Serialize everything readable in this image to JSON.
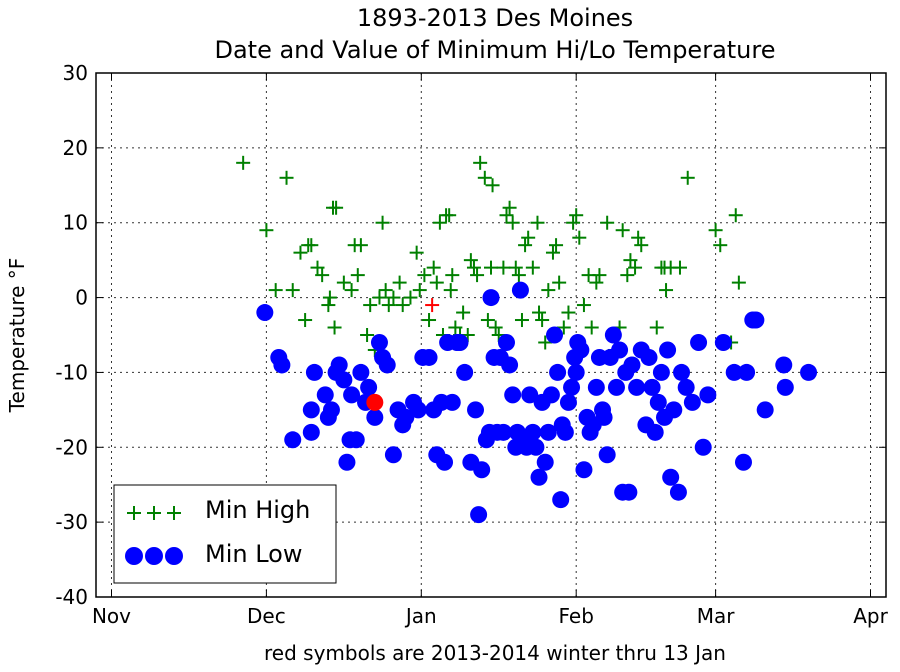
{
  "chart_data": {
    "type": "scatter",
    "title_line1": "1893-2013 Des Moines",
    "title_line2": "Date and Value of Minimum Hi/Lo Temperature",
    "xlabel": "red symbols are 2013-2014 winter thru 13 Jan",
    "ylabel": "Temperature °F",
    "ylim": [
      -40,
      30
    ],
    "yticks": [
      30,
      20,
      10,
      0,
      -10,
      -20,
      -30,
      -40
    ],
    "xlim": [
      -1,
      50
    ],
    "xticks": [
      {
        "label": "Nov",
        "value": 0
      },
      {
        "label": "Dec",
        "value": 10
      },
      {
        "label": "Jan",
        "value": 20
      },
      {
        "label": "Feb",
        "value": 30
      },
      {
        "label": "Mar",
        "value": 39
      },
      {
        "label": "Apr",
        "value": 49
      }
    ],
    "grid": true,
    "legend_position": "lower-left",
    "series": [
      {
        "name": "Min High",
        "color": "#008000",
        "marker": "plus",
        "points": [
          [
            8.5,
            18
          ],
          [
            10,
            9
          ],
          [
            10.6,
            1
          ],
          [
            11.3,
            16
          ],
          [
            11.7,
            1
          ],
          [
            12.2,
            6
          ],
          [
            12.5,
            -3
          ],
          [
            12.7,
            7
          ],
          [
            12.9,
            7
          ],
          [
            13.3,
            4
          ],
          [
            13.6,
            3
          ],
          [
            14.0,
            -1
          ],
          [
            14.1,
            0
          ],
          [
            14.3,
            12
          ],
          [
            14.5,
            12
          ],
          [
            14.4,
            -4
          ],
          [
            15.0,
            2
          ],
          [
            15.5,
            1
          ],
          [
            15.7,
            7
          ],
          [
            15.9,
            3
          ],
          [
            16.1,
            7
          ],
          [
            16.5,
            -5
          ],
          [
            16.7,
            -1
          ],
          [
            17.0,
            -7
          ],
          [
            17.3,
            0
          ],
          [
            17.5,
            10
          ],
          [
            17.7,
            1
          ],
          [
            17.9,
            -1
          ],
          [
            18.2,
            0
          ],
          [
            18.6,
            2
          ],
          [
            18.8,
            -1
          ],
          [
            19.3,
            0
          ],
          [
            19.7,
            6
          ],
          [
            19.9,
            1
          ],
          [
            20.2,
            3
          ],
          [
            20.5,
            -3
          ],
          [
            20.8,
            4
          ],
          [
            21.0,
            2
          ],
          [
            21.2,
            10
          ],
          [
            21.4,
            -5
          ],
          [
            21.6,
            11
          ],
          [
            21.8,
            11
          ],
          [
            21.9,
            1
          ],
          [
            22.0,
            3
          ],
          [
            22.2,
            -4
          ],
          [
            22.5,
            -5
          ],
          [
            22.7,
            -2
          ],
          [
            23.0,
            -5
          ],
          [
            23.2,
            5
          ],
          [
            23.4,
            4
          ],
          [
            23.6,
            3
          ],
          [
            23.8,
            18
          ],
          [
            24.1,
            16
          ],
          [
            24.3,
            -3
          ],
          [
            24.5,
            4
          ],
          [
            24.6,
            15
          ],
          [
            24.8,
            -4
          ],
          [
            25.0,
            -5
          ],
          [
            25.3,
            4
          ],
          [
            25.5,
            11
          ],
          [
            25.7,
            12
          ],
          [
            25.9,
            10
          ],
          [
            26.1,
            4
          ],
          [
            26.3,
            3
          ],
          [
            26.5,
            -3
          ],
          [
            26.7,
            7
          ],
          [
            26.9,
            8
          ],
          [
            27.2,
            4
          ],
          [
            27.5,
            10
          ],
          [
            27.6,
            -2
          ],
          [
            27.8,
            -3
          ],
          [
            28.0,
            -6
          ],
          [
            28.2,
            1
          ],
          [
            28.5,
            6
          ],
          [
            28.7,
            7
          ],
          [
            28.9,
            2
          ],
          [
            29.2,
            -4
          ],
          [
            29.5,
            -2
          ],
          [
            29.8,
            10
          ],
          [
            30.0,
            11
          ],
          [
            30.2,
            8
          ],
          [
            30.5,
            -1
          ],
          [
            30.8,
            3
          ],
          [
            31.0,
            -4
          ],
          [
            31.3,
            2
          ],
          [
            31.5,
            3
          ],
          [
            32.0,
            10
          ],
          [
            32.5,
            -7
          ],
          [
            32.8,
            -4
          ],
          [
            33.0,
            9
          ],
          [
            33.3,
            3
          ],
          [
            33.5,
            5
          ],
          [
            33.8,
            4
          ],
          [
            34.0,
            8
          ],
          [
            34.2,
            7
          ],
          [
            35.2,
            -4
          ],
          [
            35.5,
            4
          ],
          [
            35.8,
            1
          ],
          [
            35.7,
            4
          ],
          [
            36.1,
            4
          ],
          [
            36.7,
            4
          ],
          [
            37.2,
            16
          ],
          [
            39.0,
            9
          ],
          [
            39.3,
            7
          ],
          [
            40.0,
            -6
          ],
          [
            40.3,
            11
          ],
          [
            40.5,
            2
          ]
        ]
      },
      {
        "name": "Min Low",
        "color": "#0000ff",
        "marker": "circle",
        "points": [
          [
            9.9,
            -2
          ],
          [
            10.8,
            -8
          ],
          [
            11.0,
            -9
          ],
          [
            11.7,
            -19
          ],
          [
            12.9,
            -18
          ],
          [
            12.9,
            -15
          ],
          [
            13.1,
            -10
          ],
          [
            13.8,
            -13
          ],
          [
            14.0,
            -16
          ],
          [
            14.2,
            -15
          ],
          [
            14.5,
            -10
          ],
          [
            14.7,
            -9
          ],
          [
            15.0,
            -11
          ],
          [
            15.2,
            -22
          ],
          [
            15.4,
            -19
          ],
          [
            15.5,
            -13
          ],
          [
            15.8,
            -19
          ],
          [
            16.1,
            -10
          ],
          [
            16.4,
            -14
          ],
          [
            16.6,
            -12
          ],
          [
            17.0,
            -16
          ],
          [
            17.3,
            -6
          ],
          [
            17.5,
            -8
          ],
          [
            17.8,
            -9
          ],
          [
            18.2,
            -21
          ],
          [
            18.5,
            -15
          ],
          [
            18.8,
            -17
          ],
          [
            19.0,
            -16
          ],
          [
            19.5,
            -14
          ],
          [
            19.8,
            -15
          ],
          [
            20.1,
            -8
          ],
          [
            20.5,
            -8
          ],
          [
            20.8,
            -15
          ],
          [
            21.0,
            -21
          ],
          [
            21.3,
            -14
          ],
          [
            21.5,
            -22
          ],
          [
            21.7,
            -6
          ],
          [
            22.0,
            -14
          ],
          [
            22.3,
            -6
          ],
          [
            22.5,
            -6
          ],
          [
            22.8,
            -10
          ],
          [
            23.2,
            -22
          ],
          [
            23.5,
            -15
          ],
          [
            23.7,
            -29
          ],
          [
            23.9,
            -23
          ],
          [
            24.2,
            -19
          ],
          [
            24.4,
            -18
          ],
          [
            24.5,
            0
          ],
          [
            24.7,
            -8
          ],
          [
            24.9,
            -18
          ],
          [
            25.1,
            -8
          ],
          [
            25.3,
            -18
          ],
          [
            25.5,
            -6
          ],
          [
            25.7,
            -9
          ],
          [
            25.9,
            -13
          ],
          [
            26.1,
            -20
          ],
          [
            26.2,
            -18
          ],
          [
            26.4,
            1
          ],
          [
            26.6,
            -19
          ],
          [
            26.8,
            -20
          ],
          [
            27.0,
            -13
          ],
          [
            27.2,
            -18
          ],
          [
            27.4,
            -20
          ],
          [
            27.6,
            -24
          ],
          [
            27.8,
            -14
          ],
          [
            28.0,
            -22
          ],
          [
            28.2,
            -18
          ],
          [
            28.4,
            -13
          ],
          [
            28.6,
            -5
          ],
          [
            28.8,
            -10
          ],
          [
            29.0,
            -27
          ],
          [
            29.1,
            -17
          ],
          [
            29.3,
            -18
          ],
          [
            29.5,
            -14
          ],
          [
            29.7,
            -12
          ],
          [
            29.9,
            -8
          ],
          [
            30.0,
            -10
          ],
          [
            30.1,
            -6
          ],
          [
            30.3,
            -7
          ],
          [
            30.5,
            -23
          ],
          [
            30.7,
            -16
          ],
          [
            30.9,
            -18
          ],
          [
            31.1,
            -17
          ],
          [
            31.3,
            -12
          ],
          [
            31.5,
            -8
          ],
          [
            31.7,
            -15
          ],
          [
            31.8,
            -16
          ],
          [
            32.0,
            -21
          ],
          [
            32.2,
            -8
          ],
          [
            32.4,
            -5
          ],
          [
            32.6,
            -12
          ],
          [
            32.8,
            -7
          ],
          [
            33.0,
            -26
          ],
          [
            33.2,
            -10
          ],
          [
            33.4,
            -26
          ],
          [
            33.6,
            -9
          ],
          [
            33.9,
            -12
          ],
          [
            34.2,
            -7
          ],
          [
            34.5,
            -17
          ],
          [
            34.7,
            -8
          ],
          [
            34.9,
            -12
          ],
          [
            35.1,
            -18
          ],
          [
            35.3,
            -14
          ],
          [
            35.5,
            -10
          ],
          [
            35.7,
            -16
          ],
          [
            35.9,
            -7
          ],
          [
            36.1,
            -24
          ],
          [
            36.3,
            -15
          ],
          [
            36.6,
            -26
          ],
          [
            36.8,
            -10
          ],
          [
            37.1,
            -12
          ],
          [
            37.5,
            -14
          ],
          [
            37.9,
            -6
          ],
          [
            38.2,
            -20
          ],
          [
            38.5,
            -13
          ],
          [
            39.5,
            -6
          ],
          [
            40.2,
            -10
          ],
          [
            40.8,
            -22
          ],
          [
            41.0,
            -10
          ],
          [
            41.4,
            -3
          ],
          [
            41.6,
            -3
          ],
          [
            42.2,
            -15
          ],
          [
            43.4,
            -9
          ],
          [
            43.5,
            -12
          ],
          [
            45.0,
            -10
          ]
        ]
      }
    ],
    "highlight": {
      "color": "#ff0000",
      "min_high": [
        20.7,
        -1
      ],
      "min_low": [
        17.0,
        -14
      ]
    }
  }
}
